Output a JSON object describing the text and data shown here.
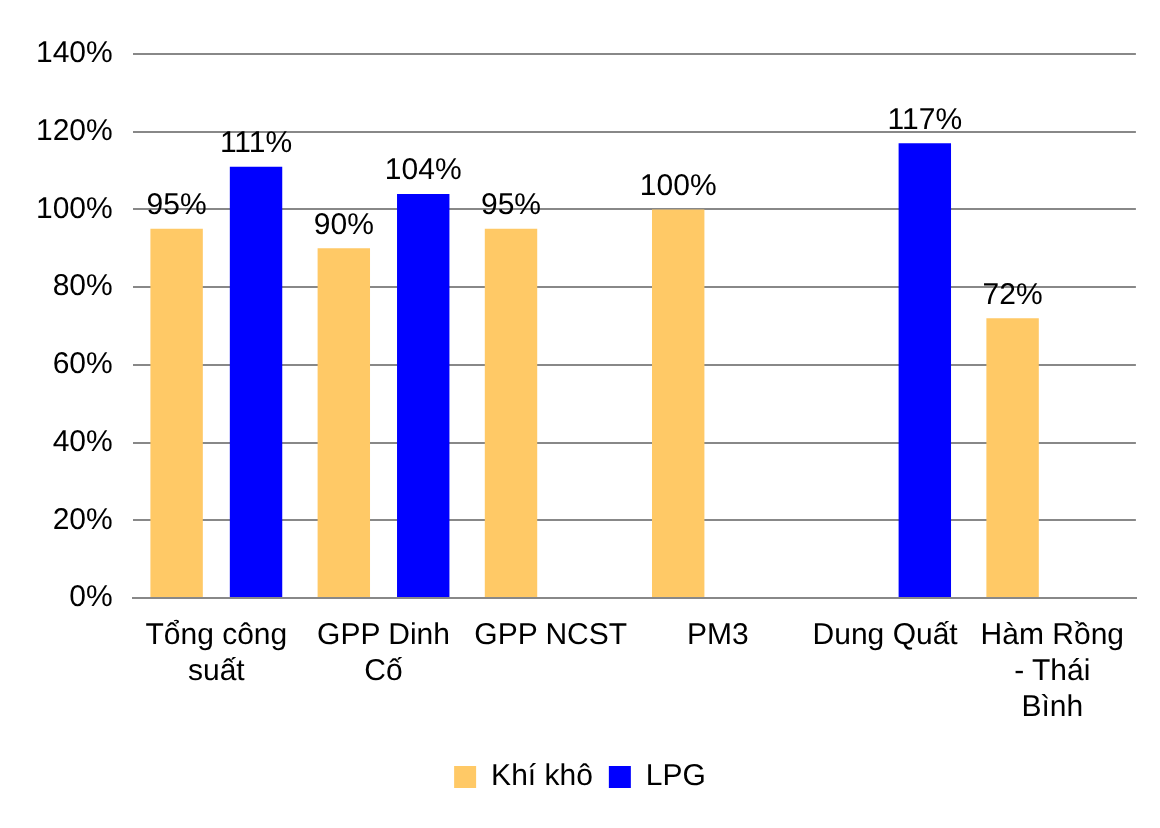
{
  "chart_data": {
    "type": "bar",
    "categories": [
      "Tổng công suất",
      "GPP Dinh Cố",
      "GPP NCST",
      "PM3",
      "Dung Quất",
      "Hàm Rồng - Thái Bình"
    ],
    "series": [
      {
        "name": "Khí khô",
        "color": "#ffc966",
        "values": [
          95,
          90,
          95,
          100,
          null,
          72
        ],
        "value_labels": [
          "95%",
          "90%",
          "95%",
          "100%",
          null,
          "72%"
        ]
      },
      {
        "name": "LPG",
        "color": "#0000ff",
        "values": [
          111,
          104,
          null,
          null,
          117,
          null
        ],
        "value_labels": [
          "111%",
          "104%",
          null,
          null,
          "117%",
          null
        ]
      }
    ],
    "ylim": [
      0,
      140
    ],
    "yticks": [
      {
        "value": 0,
        "label": "0%"
      },
      {
        "value": 20,
        "label": "20%"
      },
      {
        "value": 40,
        "label": "40%"
      },
      {
        "value": 60,
        "label": "60%"
      },
      {
        "value": 80,
        "label": "80%"
      },
      {
        "value": 100,
        "label": "100%"
      },
      {
        "value": 120,
        "label": "120%"
      },
      {
        "value": 140,
        "label": "140%"
      }
    ],
    "grid": "y",
    "legend": "bottom"
  }
}
